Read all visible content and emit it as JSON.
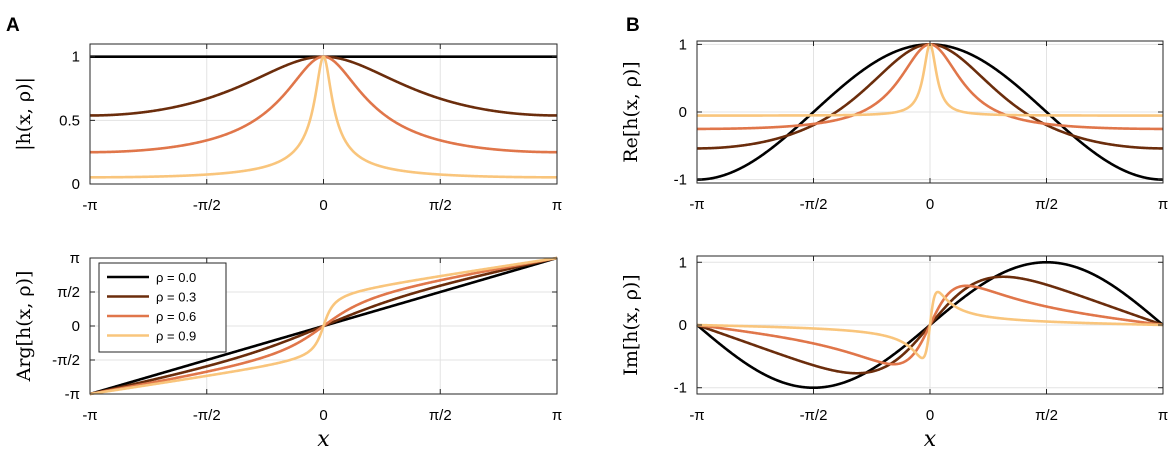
{
  "figure": {
    "panel_letters": [
      "A",
      "B"
    ]
  },
  "chart_data": [
    {
      "id": "abs",
      "type": "line",
      "panel": "A",
      "function": "abs",
      "ylabel": "|h(x, ρ)|",
      "xlabel": "",
      "xlim": [
        -3.14159,
        3.14159
      ],
      "ylim": [
        0,
        1.1
      ],
      "xticks": [
        "-π",
        "-π/2",
        "0",
        "π/2",
        "π"
      ],
      "yticks": [
        {
          "v": 0,
          "label": "0"
        },
        {
          "v": 0.5,
          "label": "0.5"
        },
        {
          "v": 1,
          "label": "1"
        }
      ],
      "grid": true,
      "series": [
        {
          "name": "ρ = 0.0",
          "rho": 0.0,
          "color": "#000000"
        },
        {
          "name": "ρ = 0.3",
          "rho": 0.3,
          "color": "#6b2d0c"
        },
        {
          "name": "ρ = 0.6",
          "rho": 0.6,
          "color": "#e0764a"
        },
        {
          "name": "ρ = 0.9",
          "rho": 0.9,
          "color": "#f9c57c"
        }
      ]
    },
    {
      "id": "arg",
      "type": "line",
      "panel": "A",
      "function": "arg",
      "ylabel": "Arg[h(x, ρ)]",
      "xlabel": "x",
      "xlim": [
        -3.14159,
        3.14159
      ],
      "ylim": [
        -3.14159,
        3.14159
      ],
      "xticks": [
        "-π",
        "-π/2",
        "0",
        "π/2",
        "π"
      ],
      "yticks": [
        {
          "v": -3.14159,
          "label": "-π"
        },
        {
          "v": -1.5708,
          "label": "-π/2"
        },
        {
          "v": 0,
          "label": "0"
        },
        {
          "v": 1.5708,
          "label": "π/2"
        },
        {
          "v": 3.14159,
          "label": "π"
        }
      ],
      "grid": true,
      "legend": "top-left",
      "series": [
        {
          "name": "ρ = 0.0",
          "rho": 0.0,
          "color": "#000000"
        },
        {
          "name": "ρ = 0.3",
          "rho": 0.3,
          "color": "#6b2d0c"
        },
        {
          "name": "ρ = 0.6",
          "rho": 0.6,
          "color": "#e0764a"
        },
        {
          "name": "ρ = 0.9",
          "rho": 0.9,
          "color": "#f9c57c"
        }
      ]
    },
    {
      "id": "re",
      "type": "line",
      "panel": "B",
      "function": "re",
      "ylabel": "Re[h(x, ρ)]",
      "xlabel": "",
      "xlim": [
        -3.14159,
        3.14159
      ],
      "ylim": [
        -1.05,
        1.05
      ],
      "xticks": [
        "-π",
        "-π/2",
        "0",
        "π/2",
        "π"
      ],
      "yticks": [
        {
          "v": -1,
          "label": "-1"
        },
        {
          "v": 0,
          "label": "0"
        },
        {
          "v": 1,
          "label": "1"
        }
      ],
      "grid": true,
      "series": [
        {
          "name": "ρ = 0.0",
          "rho": 0.0,
          "color": "#000000"
        },
        {
          "name": "ρ = 0.3",
          "rho": 0.3,
          "color": "#6b2d0c"
        },
        {
          "name": "ρ = 0.6",
          "rho": 0.6,
          "color": "#e0764a"
        },
        {
          "name": "ρ = 0.9",
          "rho": 0.9,
          "color": "#f9c57c"
        }
      ]
    },
    {
      "id": "im",
      "type": "line",
      "panel": "B",
      "function": "im",
      "ylabel": "Im[h(x, ρ)]",
      "xlabel": "x",
      "xlim": [
        -3.14159,
        3.14159
      ],
      "ylim": [
        -1.1,
        1.1
      ],
      "xticks": [
        "-π",
        "-π/2",
        "0",
        "π/2",
        "π"
      ],
      "yticks": [
        {
          "v": -1,
          "label": "-1"
        },
        {
          "v": 0,
          "label": "0"
        },
        {
          "v": 1,
          "label": "1"
        }
      ],
      "grid": true,
      "series": [
        {
          "name": "ρ = 0.0",
          "rho": 0.0,
          "color": "#000000"
        },
        {
          "name": "ρ = 0.3",
          "rho": 0.3,
          "color": "#6b2d0c"
        },
        {
          "name": "ρ = 0.6",
          "rho": 0.6,
          "color": "#e0764a"
        },
        {
          "name": "ρ = 0.9",
          "rho": 0.9,
          "color": "#f9c57c"
        }
      ]
    }
  ]
}
